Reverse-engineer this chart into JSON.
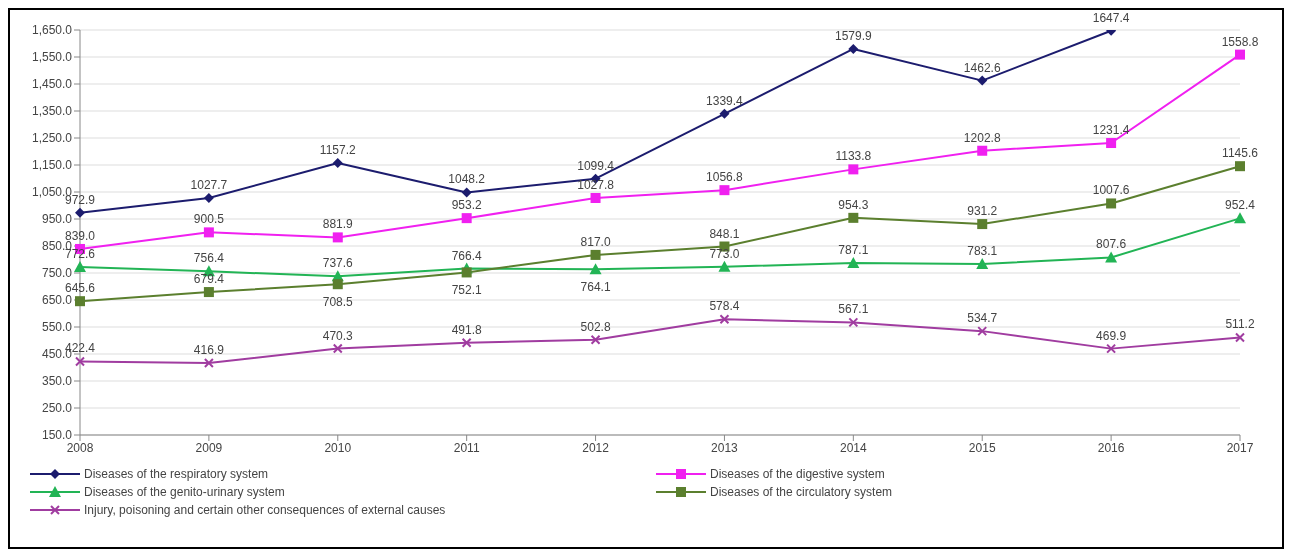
{
  "chart_data": {
    "type": "line",
    "categories": [
      "2008",
      "2009",
      "2010",
      "2011",
      "2012",
      "2013",
      "2014",
      "2015",
      "2016",
      "2017"
    ],
    "series": [
      {
        "name": "Diseases of the respiratory system",
        "color": "#1c1c6e",
        "marker": "diamond",
        "values": [
          972.9,
          1027.7,
          1157.2,
          1048.2,
          1099.4,
          1339.4,
          1579.9,
          1462.6,
          1647.4,
          null
        ],
        "value_labels": [
          "972.9",
          "1027.7",
          "1157.2",
          "1048.2",
          "1099.4",
          "1339.4",
          "1579.9",
          "1462.6",
          "1647.4",
          null
        ]
      },
      {
        "name": "Diseases of the digestive system",
        "color": "#f020f0",
        "marker": "square",
        "values": [
          839.0,
          900.5,
          881.9,
          953.2,
          1027.8,
          1056.8,
          1133.8,
          1202.8,
          1231.4,
          1558.8
        ],
        "value_labels": [
          "839.0",
          "900.5",
          "881.9",
          "953.2",
          "1027.8",
          "1056.8",
          "1133.8",
          "1202.8",
          "1231.4",
          "1558.8"
        ]
      },
      {
        "name": "Diseases of the genito-urinary system",
        "color": "#22b455",
        "marker": "triangle",
        "values": [
          772.6,
          756.4,
          737.6,
          766.4,
          764.1,
          773.0,
          787.1,
          783.1,
          807.6,
          952.4
        ],
        "value_labels": [
          "772.6",
          "756.4",
          "737.6",
          "766.4",
          "764.1",
          "773.0",
          "787.1",
          "783.1",
          "807.6",
          "952.4"
        ]
      },
      {
        "name": "Diseases of the circulatory system",
        "color": "#5b7f2e",
        "marker": "square",
        "values": [
          645.6,
          679.4,
          708.5,
          752.1,
          817.0,
          848.1,
          954.3,
          931.2,
          1007.6,
          1145.6
        ],
        "value_labels": [
          "645.6",
          "679.4",
          "708.5",
          "752.1",
          "817.0",
          "848.1",
          "954.3",
          "931.2",
          "1007.6",
          "1145.6"
        ]
      },
      {
        "name": "Injury, poisoning and certain other consequences of external causes",
        "color": "#a03ca0",
        "marker": "cross",
        "values": [
          422.4,
          416.9,
          470.3,
          491.8,
          502.8,
          578.4,
          567.1,
          534.7,
          469.9,
          511.2
        ],
        "value_labels": [
          "422.4",
          "416.9",
          "470.3",
          "491.8",
          "502.8",
          "578.4",
          "567.1",
          "534.7",
          "469.9",
          "511.2"
        ]
      }
    ],
    "ylim": [
      150,
      1650
    ],
    "yticks": [
      {
        "value": 1650,
        "label": "1,650.0"
      },
      {
        "value": 1550,
        "label": "1,550.0"
      },
      {
        "value": 1450,
        "label": "1,450.0"
      },
      {
        "value": 1350,
        "label": "1,350.0"
      },
      {
        "value": 1250,
        "label": "1,250.0"
      },
      {
        "value": 1150,
        "label": "1,150.0"
      },
      {
        "value": 1050,
        "label": "1,050.0"
      },
      {
        "value": 950,
        "label": "950.0"
      },
      {
        "value": 850,
        "label": "850.0"
      },
      {
        "value": 750,
        "label": "750.0"
      },
      {
        "value": 650,
        "label": "650.0"
      },
      {
        "value": 550,
        "label": "550.0"
      },
      {
        "value": 450,
        "label": "450.0"
      },
      {
        "value": 350,
        "label": "350.0"
      },
      {
        "value": 250,
        "label": "250.0"
      },
      {
        "value": 150,
        "label": "150.0"
      }
    ],
    "grid": "y",
    "legend": "bottom",
    "line_style": "solid"
  }
}
